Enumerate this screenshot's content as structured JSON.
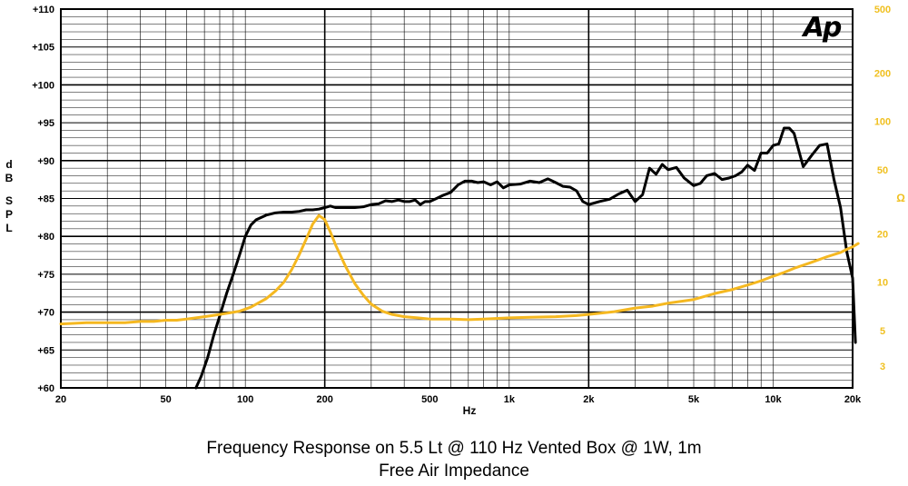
{
  "chart_data": {
    "type": "line",
    "caption_line1": "Frequency Response on 5.5 Lt @ 110 Hz Vented Box @ 1W, 1m",
    "caption_line2": "Free Air Impedance",
    "logo": "Ap",
    "xlabel": "Hz",
    "ylabel_left": "dB SPL",
    "ylabel_right": "Ω",
    "xscale": "log",
    "xlim": [
      20,
      20000
    ],
    "ylim_left": [
      60,
      110
    ],
    "ylim_right_scale": "log",
    "ylim_right": [
      2.2,
      500
    ],
    "grid": true,
    "x_ticks": [
      {
        "value": 20,
        "label": "20"
      },
      {
        "value": 50,
        "label": "50"
      },
      {
        "value": 100,
        "label": "100"
      },
      {
        "value": 200,
        "label": "200"
      },
      {
        "value": 500,
        "label": "500"
      },
      {
        "value": 1000,
        "label": "1k"
      },
      {
        "value": 2000,
        "label": "2k"
      },
      {
        "value": 5000,
        "label": "5k"
      },
      {
        "value": 10000,
        "label": "10k"
      },
      {
        "value": 20000,
        "label": "20k"
      }
    ],
    "y_ticks_left": [
      {
        "value": 60,
        "label": "+60"
      },
      {
        "value": 65,
        "label": "+65"
      },
      {
        "value": 70,
        "label": "+70"
      },
      {
        "value": 75,
        "label": "+75"
      },
      {
        "value": 80,
        "label": "+80"
      },
      {
        "value": 85,
        "label": "+85"
      },
      {
        "value": 90,
        "label": "+90"
      },
      {
        "value": 95,
        "label": "+95"
      },
      {
        "value": 100,
        "label": "+100"
      },
      {
        "value": 105,
        "label": "+105"
      },
      {
        "value": 110,
        "label": "+110"
      }
    ],
    "y_ticks_right": [
      {
        "value": 500,
        "label": "500"
      },
      {
        "value": 200,
        "label": "200"
      },
      {
        "value": 100,
        "label": "100"
      },
      {
        "value": 50,
        "label": "50"
      },
      {
        "value": 20,
        "label": "20"
      },
      {
        "value": 10,
        "label": "10"
      },
      {
        "value": 5,
        "label": "5"
      },
      {
        "value": 3,
        "label": "3"
      }
    ],
    "colors": {
      "spl": "#000000",
      "impedance": "#f5b820",
      "right_axis": "#f0c020",
      "grid": "#000000"
    },
    "series": [
      {
        "axis": "left",
        "x": [
          65,
          68,
          72,
          76,
          80,
          85,
          90,
          95,
          100,
          105,
          110,
          120,
          130,
          140,
          150,
          160,
          170,
          180,
          190,
          200,
          210,
          220,
          240,
          260,
          280,
          300,
          320,
          340,
          360,
          380,
          400,
          420,
          440,
          460,
          480,
          500,
          530,
          560,
          600,
          640,
          680,
          720,
          760,
          800,
          850,
          900,
          950,
          1000,
          1100,
          1200,
          1300,
          1400,
          1500,
          1600,
          1700,
          1800,
          1900,
          2000,
          2100,
          2200,
          2400,
          2600,
          2800,
          3000,
          3200,
          3400,
          3600,
          3800,
          4000,
          4300,
          4600,
          5000,
          5300,
          5600,
          6000,
          6400,
          6800,
          7200,
          7600,
          8000,
          8500,
          9000,
          9500,
          10000,
          10500,
          11000,
          11500,
          12000,
          13000,
          14000,
          15000,
          16000,
          17000,
          18000,
          19000,
          20000,
          20500
        ],
        "values": [
          60,
          61.5,
          64,
          67,
          69.5,
          72.5,
          75,
          77.5,
          80,
          81.5,
          82.2,
          82.8,
          83.1,
          83.2,
          83.2,
          83.3,
          83.5,
          83.5,
          83.6,
          83.8,
          84.0,
          83.8,
          83.8,
          83.8,
          83.9,
          84.2,
          84.3,
          84.7,
          84.6,
          84.8,
          84.6,
          84.6,
          84.8,
          84.2,
          84.6,
          84.6,
          85.0,
          85.4,
          85.8,
          86.8,
          87.3,
          87.3,
          87.1,
          87.2,
          86.8,
          87.2,
          86.4,
          86.8,
          86.9,
          87.3,
          87.1,
          87.6,
          87.1,
          86.6,
          86.5,
          86.0,
          84.6,
          84.2,
          84.4,
          84.6,
          84.9,
          85.6,
          86.1,
          84.6,
          85.5,
          89.0,
          88.2,
          89.5,
          88.8,
          89.1,
          87.7,
          86.7,
          87.0,
          88.0,
          88.3,
          87.5,
          87.7,
          88.0,
          88.5,
          89.4,
          88.7,
          91.0,
          91.0,
          92.0,
          92.2,
          94.3,
          94.3,
          93.6,
          89.2,
          90.7,
          92.0,
          92.2,
          87.5,
          83.8,
          78.0,
          74.5,
          66.0
        ]
      },
      {
        "axis": "right",
        "x": [
          20,
          25,
          30,
          35,
          40,
          45,
          50,
          55,
          60,
          65,
          70,
          75,
          80,
          85,
          90,
          95,
          100,
          105,
          110,
          120,
          130,
          140,
          150,
          160,
          170,
          180,
          190,
          200,
          210,
          220,
          240,
          260,
          280,
          300,
          330,
          360,
          400,
          450,
          500,
          600,
          700,
          800,
          1000,
          1200,
          1500,
          1800,
          2000,
          2500,
          3000,
          3500,
          4000,
          5000,
          6000,
          7000,
          8000,
          9000,
          10000,
          11000,
          12000,
          14000,
          16000,
          18000,
          19000,
          20000,
          21000
        ],
        "values": [
          5.5,
          5.6,
          5.6,
          5.6,
          5.7,
          5.7,
          5.8,
          5.8,
          5.9,
          6.0,
          6.1,
          6.2,
          6.3,
          6.4,
          6.5,
          6.6,
          6.8,
          7.0,
          7.3,
          7.9,
          8.8,
          10.0,
          12.0,
          14.8,
          18.5,
          23.0,
          26.0,
          24.5,
          20.5,
          17.0,
          12.5,
          9.8,
          8.3,
          7.3,
          6.6,
          6.3,
          6.1,
          6.0,
          5.9,
          5.9,
          5.85,
          5.9,
          6.0,
          6.05,
          6.1,
          6.2,
          6.3,
          6.55,
          6.9,
          7.1,
          7.4,
          7.8,
          8.5,
          9.0,
          9.6,
          10.2,
          10.9,
          11.5,
          12.2,
          13.3,
          14.4,
          15.3,
          16.0,
          16.6,
          17.4
        ]
      }
    ]
  }
}
